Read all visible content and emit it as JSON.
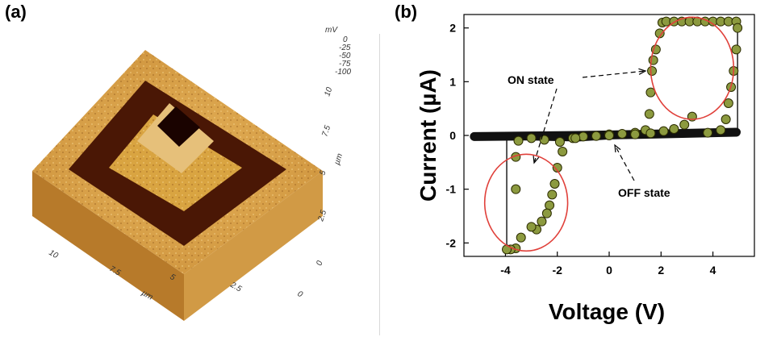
{
  "panels": {
    "a_label": "(a)",
    "b_label": "(b)"
  },
  "afm": {
    "scale_unit": "mV",
    "scale_ticks": [
      "0",
      "-25",
      "-50",
      "-75",
      "-100"
    ],
    "right_axis_unit": "µm",
    "right_axis_ticks": [
      "10",
      "7.5",
      "5",
      "2.5",
      "0"
    ],
    "front_axis_unit": "µm",
    "front_axis_ticks": [
      "10",
      "7.5",
      "5",
      "2.5",
      "0"
    ],
    "colors": {
      "light": "#d9a441",
      "mid": "#a8661c",
      "dark": "#4a1705",
      "darkest": "#1a0300",
      "side": "#c48a33"
    }
  },
  "chart_data": {
    "type": "scatter",
    "xlabel": "Voltage (V)",
    "ylabel": "Current (µA)",
    "xlim": [
      -5.6,
      5.6
    ],
    "ylim": [
      -2.25,
      2.25
    ],
    "x_ticks": [
      "-4",
      "-2",
      "0",
      "2",
      "4"
    ],
    "x_tick_values": [
      -4,
      -2,
      0,
      2,
      4
    ],
    "y_ticks": [
      "-2",
      "-1",
      "0",
      "1",
      "2"
    ],
    "y_tick_values": [
      -2,
      -1,
      0,
      1,
      2
    ],
    "annotations": {
      "on": "ON state",
      "off": "OFF state"
    },
    "colors": {
      "marker": "#8c9a3f",
      "marker_edge": "#2b2b00",
      "ellipse": "#e0403a",
      "off_line": "#111111"
    },
    "series": [
      {
        "name": "",
        "role": "on_sweep",
        "points": [
          [
            0,
            0.02
          ],
          [
            0.5,
            0.03
          ],
          [
            1.0,
            0.05
          ],
          [
            1.4,
            0.1
          ],
          [
            1.55,
            0.4
          ],
          [
            1.6,
            0.8
          ],
          [
            1.65,
            1.2
          ],
          [
            1.7,
            1.4
          ],
          [
            1.8,
            1.6
          ],
          [
            1.95,
            1.9
          ],
          [
            2.05,
            2.1
          ],
          [
            2.2,
            2.12
          ],
          [
            2.5,
            2.12
          ],
          [
            2.8,
            2.12
          ],
          [
            3.1,
            2.12
          ],
          [
            3.4,
            2.12
          ],
          [
            3.7,
            2.12
          ],
          [
            4.0,
            2.12
          ],
          [
            4.3,
            2.12
          ],
          [
            4.6,
            2.12
          ],
          [
            4.9,
            2.12
          ]
        ]
      },
      {
        "name": "",
        "role": "on_return",
        "points": [
          [
            4.95,
            2.0
          ],
          [
            4.9,
            1.6
          ],
          [
            4.8,
            1.2
          ],
          [
            4.7,
            0.9
          ],
          [
            4.6,
            0.6
          ],
          [
            4.5,
            0.3
          ],
          [
            4.3,
            0.1
          ],
          [
            3.8,
            0.05
          ],
          [
            3.2,
            0.35
          ],
          [
            2.9,
            0.2
          ],
          [
            2.5,
            0.12
          ],
          [
            2.1,
            0.08
          ],
          [
            1.6,
            0.04
          ],
          [
            1.0,
            0.02
          ]
        ]
      },
      {
        "name": "",
        "role": "neg_sweep",
        "points": [
          [
            -0.5,
            -0.01
          ],
          [
            -1.0,
            -0.02
          ],
          [
            -1.4,
            -0.05
          ],
          [
            -1.8,
            -0.3
          ],
          [
            -2.0,
            -0.6
          ],
          [
            -2.1,
            -0.9
          ],
          [
            -2.2,
            -1.1
          ],
          [
            -2.3,
            -1.3
          ],
          [
            -2.4,
            -1.45
          ],
          [
            -2.6,
            -1.6
          ],
          [
            -2.8,
            -1.75
          ],
          [
            -3.0,
            -1.7
          ],
          [
            -3.4,
            -1.9
          ],
          [
            -3.6,
            -2.1
          ],
          [
            -3.8,
            -2.12
          ],
          [
            -3.95,
            -2.12
          ]
        ]
      },
      {
        "name": "",
        "role": "neg_return",
        "points": [
          [
            -3.6,
            -1.0
          ],
          [
            -3.6,
            -0.4
          ],
          [
            -3.5,
            -0.1
          ],
          [
            -3.0,
            -0.05
          ],
          [
            -2.5,
            -0.08
          ],
          [
            -1.9,
            -0.12
          ],
          [
            -1.3,
            -0.05
          ],
          [
            -0.5,
            -0.01
          ],
          [
            0,
            0
          ]
        ]
      }
    ],
    "ellipses": [
      {
        "cx": 3.2,
        "cy": 1.25,
        "rx": 1.6,
        "ry": 0.95
      },
      {
        "cx": -3.2,
        "cy": -1.25,
        "rx": 1.6,
        "ry": 0.9
      }
    ]
  }
}
